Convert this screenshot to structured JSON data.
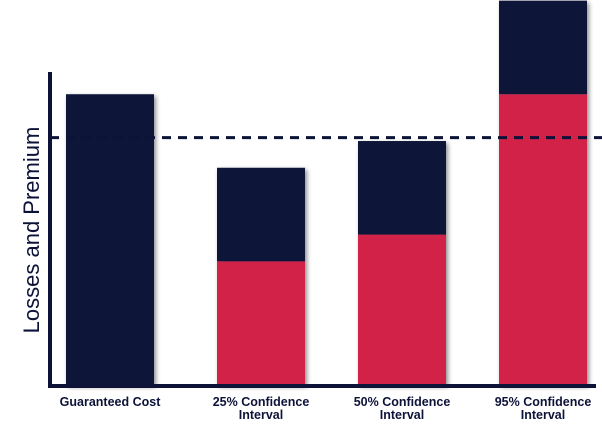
{
  "chart_data": {
    "type": "bar",
    "stacked": true,
    "ylabel": "Losses and Premium",
    "xlabel": "",
    "title": "",
    "grid": false,
    "legend": "none",
    "categories": [
      [
        "Guaranteed Cost"
      ],
      [
        "25% Confidence",
        "Interval"
      ],
      [
        "50% Confidence",
        "Interval"
      ],
      [
        "95% Confidence",
        "Interval"
      ]
    ],
    "series": [
      {
        "values": [
          0,
          37,
          45,
          87
        ]
      },
      {
        "values": [
          87,
          28,
          28,
          28
        ]
      }
    ],
    "reference_line": {
      "value": 74,
      "style": "dashed"
    },
    "ylim": [
      0,
      114
    ],
    "colors": {
      "losses": "#d22046",
      "premium": "#0d1338",
      "axis": "#0d1338",
      "reference": "#0d1338"
    }
  }
}
